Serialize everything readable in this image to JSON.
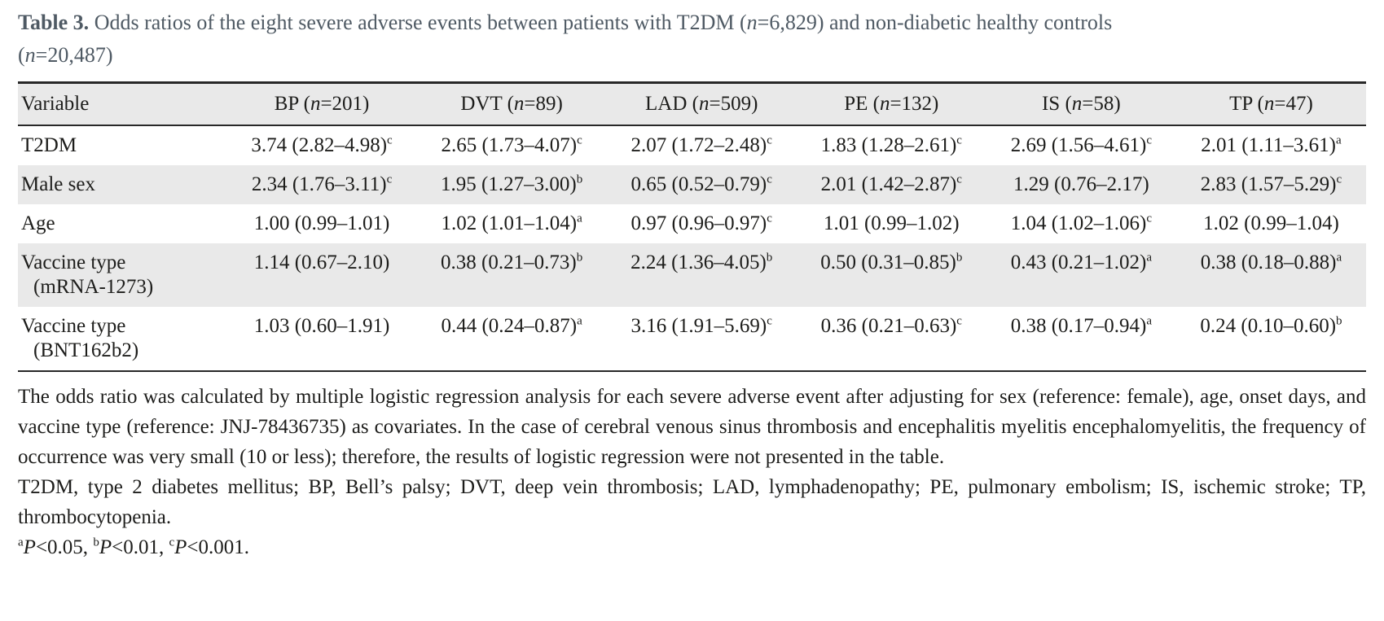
{
  "colors": {
    "stripe": "#e9e9e9",
    "border": "#282828",
    "title_text": "#4f5a64",
    "body_text": "#1d1d1b",
    "background": "#ffffff"
  },
  "title": {
    "label": "Table 3.",
    "segments": [
      {
        "t": " Odds ratios of the eight severe adverse events between patients with T2DM ("
      },
      {
        "t": "n",
        "i": true
      },
      {
        "t": "=6,829) and non-diabetic healthy controls"
      },
      {
        "br": true
      },
      {
        "t": "("
      },
      {
        "t": "n",
        "i": true
      },
      {
        "t": "=20,487)"
      }
    ]
  },
  "table": {
    "header": [
      [
        {
          "t": "Variable"
        }
      ],
      [
        {
          "t": "BP ("
        },
        {
          "t": "n",
          "i": true
        },
        {
          "t": "=201)"
        }
      ],
      [
        {
          "t": "DVT ("
        },
        {
          "t": "n",
          "i": true
        },
        {
          "t": "=89)"
        }
      ],
      [
        {
          "t": "LAD ("
        },
        {
          "t": "n",
          "i": true
        },
        {
          "t": "=509)"
        }
      ],
      [
        {
          "t": "PE ("
        },
        {
          "t": "n",
          "i": true
        },
        {
          "t": "=132)"
        }
      ],
      [
        {
          "t": "IS ("
        },
        {
          "t": "n",
          "i": true
        },
        {
          "t": "=58)"
        }
      ],
      [
        {
          "t": "TP ("
        },
        {
          "t": "n",
          "i": true
        },
        {
          "t": "=47)"
        }
      ]
    ],
    "rows": [
      {
        "variable": [
          "T2DM"
        ],
        "cells": [
          {
            "v": "3.74 (2.82–4.98)",
            "sup": "c"
          },
          {
            "v": "2.65 (1.73–4.07)",
            "sup": "c"
          },
          {
            "v": "2.07 (1.72–2.48)",
            "sup": "c"
          },
          {
            "v": "1.83 (1.28–2.61)",
            "sup": "c"
          },
          {
            "v": "2.69 (1.56–4.61)",
            "sup": "c"
          },
          {
            "v": "2.01 (1.11–3.61)",
            "sup": "a"
          }
        ]
      },
      {
        "variable": [
          "Male sex"
        ],
        "cells": [
          {
            "v": "2.34 (1.76–3.11)",
            "sup": "c"
          },
          {
            "v": "1.95 (1.27–3.00)",
            "sup": "b"
          },
          {
            "v": "0.65 (0.52–0.79)",
            "sup": "c"
          },
          {
            "v": "2.01 (1.42–2.87)",
            "sup": "c"
          },
          {
            "v": "1.29 (0.76–2.17)",
            "sup": ""
          },
          {
            "v": "2.83 (1.57–5.29)",
            "sup": "c"
          }
        ]
      },
      {
        "variable": [
          "Age"
        ],
        "cells": [
          {
            "v": "1.00 (0.99–1.01)",
            "sup": ""
          },
          {
            "v": "1.02 (1.01–1.04)",
            "sup": "a"
          },
          {
            "v": "0.97 (0.96–0.97)",
            "sup": "c"
          },
          {
            "v": "1.01 (0.99–1.02)",
            "sup": ""
          },
          {
            "v": "1.04 (1.02–1.06)",
            "sup": "c"
          },
          {
            "v": "1.02 (0.99–1.04)",
            "sup": ""
          }
        ]
      },
      {
        "variable": [
          "Vaccine type",
          "(mRNA-1273)"
        ],
        "cells": [
          {
            "v": "1.14 (0.67–2.10)",
            "sup": ""
          },
          {
            "v": "0.38 (0.21–0.73)",
            "sup": "b"
          },
          {
            "v": "2.24 (1.36–4.05)",
            "sup": "b"
          },
          {
            "v": "0.50 (0.31–0.85)",
            "sup": "b"
          },
          {
            "v": "0.43 (0.21–1.02)",
            "sup": "a"
          },
          {
            "v": "0.38 (0.18–0.88)",
            "sup": "a"
          }
        ]
      },
      {
        "variable": [
          "Vaccine type",
          "(BNT162b2)"
        ],
        "cells": [
          {
            "v": "1.03 (0.60–1.91)",
            "sup": ""
          },
          {
            "v": "0.44 (0.24–0.87)",
            "sup": "a"
          },
          {
            "v": "3.16 (1.91–5.69)",
            "sup": "c"
          },
          {
            "v": "0.36 (0.21–0.63)",
            "sup": "c"
          },
          {
            "v": "0.38 (0.17–0.94)",
            "sup": "a"
          },
          {
            "v": "0.24 (0.10–0.60)",
            "sup": "b"
          }
        ]
      }
    ]
  },
  "footnotes": {
    "methods": "The odds ratio was calculated by multiple logistic regression analysis for each severe adverse event after adjusting for sex (reference: female), age, onset days, and vaccine type (reference: JNJ-78436735) as covariates. In the case of cerebral venous sinus thrombosis and encephalitis myelitis encephalomyelitis, the frequency of occurrence was very small (10 or less); therefore, the results of logistic regression were not presented in the table.",
    "abbreviations": "T2DM, type 2 diabetes mellitus; BP, Bell’s palsy; DVT, deep vein thrombosis; LAD, lymphadenopathy; PE, pulmonary embolism; IS, ischemic stroke; TP, thrombocytopenia.",
    "significance": [
      {
        "t": "a",
        "sup": true
      },
      {
        "t": "P",
        "i": true
      },
      {
        "t": "<0.05, "
      },
      {
        "t": "b",
        "sup": true
      },
      {
        "t": "P",
        "i": true
      },
      {
        "t": "<0.01, "
      },
      {
        "t": "c",
        "sup": true
      },
      {
        "t": "P",
        "i": true
      },
      {
        "t": "<0.001."
      }
    ]
  }
}
